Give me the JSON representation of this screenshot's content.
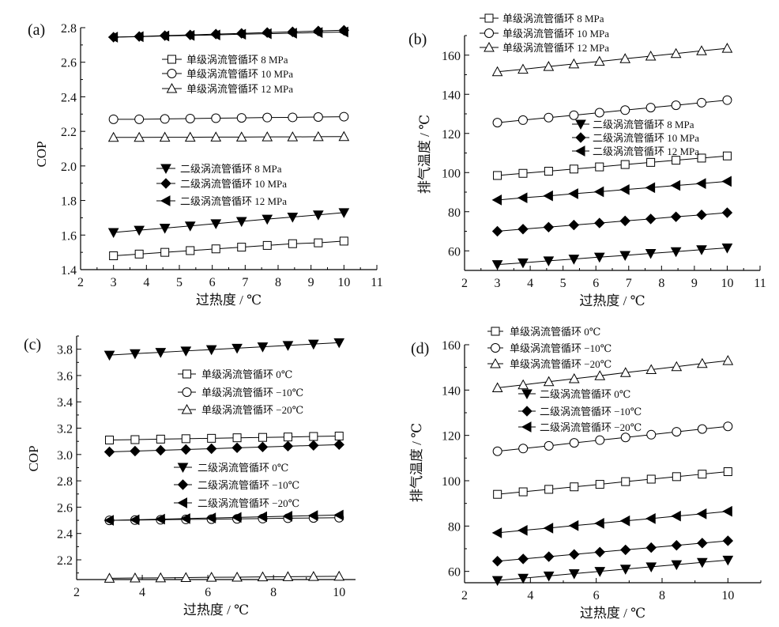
{
  "chart_data": [
    {
      "type": "line",
      "panel_label": "(a)",
      "xlabel": "过热度 / ℃",
      "ylabel": "COP",
      "xlim": [
        2,
        11
      ],
      "ylim": [
        1.4,
        2.8
      ],
      "xticks": [
        2,
        3,
        4,
        5,
        6,
        7,
        8,
        9,
        10,
        11
      ],
      "yticks": [
        1.4,
        1.6,
        1.8,
        2.0,
        2.2,
        2.4,
        2.6,
        2.8
      ],
      "ytick_decimals": 1,
      "grid": false,
      "x": [
        3,
        3.78,
        4.56,
        5.33,
        6.11,
        6.89,
        7.67,
        8.44,
        9.22,
        10
      ],
      "series": [
        {
          "name": "单级涡流管循环 8 MPa",
          "marker": "square-open",
          "values": [
            1.48,
            1.49,
            1.5,
            1.51,
            1.52,
            1.53,
            1.54,
            1.55,
            1.555,
            1.565
          ]
        },
        {
          "name": "单级涡流管循环 10 MPa",
          "marker": "circle-open",
          "values": [
            2.27,
            2.27,
            2.272,
            2.274,
            2.276,
            2.278,
            2.28,
            2.281,
            2.283,
            2.285
          ]
        },
        {
          "name": "单级涡流管循环 12 MPa",
          "marker": "triangle-up-open",
          "values": [
            2.165,
            2.165,
            2.166,
            2.166,
            2.167,
            2.167,
            2.168,
            2.168,
            2.169,
            2.17
          ]
        },
        {
          "name": "二级涡流管循环 8 MPa",
          "marker": "triangle-down-filled",
          "values": [
            1.615,
            1.628,
            1.64,
            1.653,
            1.666,
            1.679,
            1.692,
            1.704,
            1.717,
            1.73
          ]
        },
        {
          "name": "二级涡流管循环 10 MPa",
          "marker": "diamond-filled",
          "values": [
            2.745,
            2.749,
            2.754,
            2.758,
            2.763,
            2.767,
            2.772,
            2.776,
            2.781,
            2.785
          ]
        },
        {
          "name": "二级涡流管循环 12 MPa",
          "marker": "triangle-left-filled",
          "values": [
            2.745,
            2.748,
            2.752,
            2.755,
            2.758,
            2.762,
            2.765,
            2.768,
            2.772,
            2.775
          ]
        }
      ]
    },
    {
      "type": "line",
      "panel_label": "(b)",
      "xlabel": "过热度 / ℃",
      "ylabel": "排气温度 / ℃",
      "xlim": [
        2,
        11
      ],
      "ylim": [
        50,
        170
      ],
      "xticks": [
        2,
        3,
        4,
        5,
        6,
        7,
        8,
        9,
        10,
        11
      ],
      "yticks": [
        60,
        80,
        100,
        120,
        140,
        160
      ],
      "ytick_decimals": 0,
      "grid": false,
      "x": [
        3,
        3.78,
        4.56,
        5.33,
        6.11,
        6.89,
        7.67,
        8.44,
        9.22,
        10
      ],
      "series": [
        {
          "name": "单级涡流管循环 8 MPa",
          "marker": "square-open",
          "values": [
            98.5,
            99.6,
            100.7,
            101.8,
            102.9,
            104.1,
            105.2,
            106.3,
            107.4,
            108.5
          ]
        },
        {
          "name": "单级涡流管循环 10 MPa",
          "marker": "circle-open",
          "values": [
            125.5,
            126.8,
            128.1,
            129.3,
            130.6,
            131.9,
            133.2,
            134.4,
            135.7,
            137
          ]
        },
        {
          "name": "单级涡流管循环 12 MPa",
          "marker": "triangle-up-open",
          "values": [
            151.5,
            152.8,
            154.2,
            155.5,
            156.8,
            158.2,
            159.5,
            160.8,
            162.2,
            163.5
          ]
        },
        {
          "name": "二级涡流管循环 8 MPa",
          "marker": "triangle-down-filled",
          "values": [
            53,
            53.9,
            54.9,
            55.8,
            56.8,
            57.7,
            58.7,
            59.6,
            60.6,
            61.5
          ]
        },
        {
          "name": "二级涡流管循环 10 MPa",
          "marker": "diamond-filled",
          "values": [
            70,
            71.1,
            72.1,
            73.2,
            74.2,
            75.3,
            76.3,
            77.4,
            78.4,
            79.5
          ]
        },
        {
          "name": "二级涡流管循环 12 MPa",
          "marker": "triangle-left-filled",
          "values": [
            86,
            87.1,
            88.1,
            89.2,
            90.2,
            91.3,
            92.3,
            93.4,
            94.4,
            95.5
          ]
        }
      ]
    },
    {
      "type": "line",
      "panel_label": "(c)",
      "xlabel": "过热度 / ℃",
      "ylabel": "COP",
      "xlim": [
        2,
        10.5
      ],
      "ylim": [
        2.05,
        3.9
      ],
      "xticks": [
        2,
        4,
        6,
        8,
        10
      ],
      "yticks": [
        2.2,
        2.4,
        2.6,
        2.8,
        3.0,
        3.2,
        3.4,
        3.6,
        3.8
      ],
      "ytick_decimals": 1,
      "grid": false,
      "x": [
        3,
        3.78,
        4.56,
        5.33,
        6.11,
        6.89,
        7.67,
        8.44,
        9.22,
        10
      ],
      "series": [
        {
          "name": "单级涡流管循环 0℃",
          "marker": "square-open",
          "values": [
            3.11,
            3.113,
            3.117,
            3.12,
            3.123,
            3.127,
            3.13,
            3.133,
            3.137,
            3.14
          ]
        },
        {
          "name": "单级涡流管循环 −10℃",
          "marker": "circle-open",
          "values": [
            2.5,
            2.502,
            2.504,
            2.507,
            2.509,
            2.511,
            2.513,
            2.516,
            2.518,
            2.52
          ]
        },
        {
          "name": "单级涡流管循环 −20℃",
          "marker": "triangle-up-open",
          "values": [
            2.06,
            2.062,
            2.063,
            2.065,
            2.067,
            2.068,
            2.07,
            2.072,
            2.073,
            2.075
          ]
        },
        {
          "name": "二级涡流管循环 0℃",
          "marker": "triangle-down-filled",
          "values": [
            3.755,
            3.766,
            3.776,
            3.787,
            3.797,
            3.808,
            3.818,
            3.829,
            3.839,
            3.85
          ]
        },
        {
          "name": "二级涡流管循环 −10℃",
          "marker": "diamond-filled",
          "values": [
            3.02,
            3.026,
            3.032,
            3.038,
            3.044,
            3.051,
            3.057,
            3.063,
            3.069,
            3.075
          ]
        },
        {
          "name": "二级涡流管循环 −20℃",
          "marker": "triangle-left-filled",
          "values": [
            2.5,
            2.504,
            2.509,
            2.513,
            2.518,
            2.522,
            2.527,
            2.531,
            2.536,
            2.54
          ]
        }
      ]
    },
    {
      "type": "line",
      "panel_label": "(d)",
      "xlabel": "过热度 / ℃",
      "ylabel": "排气温度 / ℃",
      "xlim": [
        2,
        11
      ],
      "ylim": [
        55,
        160
      ],
      "xticks": [
        2,
        4,
        6,
        8,
        10
      ],
      "yticks": [
        60,
        80,
        100,
        120,
        140,
        160
      ],
      "ytick_decimals": 0,
      "grid": false,
      "x": [
        3,
        3.78,
        4.56,
        5.33,
        6.11,
        6.89,
        7.67,
        8.44,
        9.22,
        10
      ],
      "series": [
        {
          "name": "单级涡流管循环 0℃",
          "marker": "square-open",
          "values": [
            94,
            95.1,
            96.2,
            97.3,
            98.4,
            99.6,
            100.7,
            101.8,
            102.9,
            104
          ]
        },
        {
          "name": "单级涡流管循环 −10℃",
          "marker": "circle-open",
          "values": [
            113,
            114.2,
            115.4,
            116.7,
            117.9,
            119.1,
            120.3,
            121.6,
            122.8,
            124
          ]
        },
        {
          "name": "单级涡流管循环 −20℃",
          "marker": "triangle-up-open",
          "values": [
            141,
            142.3,
            143.7,
            145,
            146.3,
            147.7,
            149,
            150.3,
            151.7,
            153
          ]
        },
        {
          "name": "二级涡流管循环 0℃",
          "marker": "triangle-down-filled",
          "values": [
            56,
            57,
            58,
            59,
            60,
            61,
            62,
            63,
            64,
            65
          ]
        },
        {
          "name": "二级涡流管循环 −10℃",
          "marker": "diamond-filled",
          "values": [
            64.5,
            65.5,
            66.5,
            67.5,
            68.5,
            69.5,
            70.5,
            71.5,
            72.5,
            73.5
          ]
        },
        {
          "name": "二级涡流管循环 −20℃",
          "marker": "triangle-left-filled",
          "values": [
            77,
            78.1,
            79.1,
            80.2,
            81.2,
            82.3,
            83.3,
            84.4,
            85.4,
            86.5
          ]
        }
      ]
    }
  ]
}
